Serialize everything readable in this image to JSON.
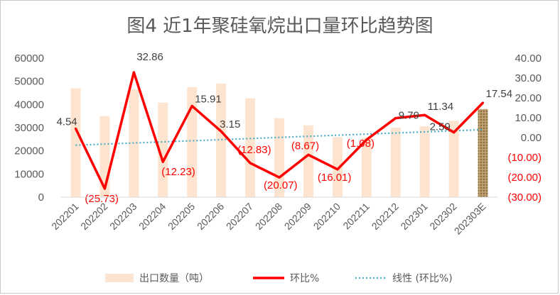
{
  "chart_data": {
    "type": "bar",
    "title": "图4  近1年聚硅氧烷出口量环比趋势图",
    "categories": [
      "202201",
      "202202",
      "202203",
      "202204",
      "202205",
      "202206",
      "202207",
      "202208",
      "202209",
      "202210",
      "202211",
      "202212",
      "202301",
      "202302",
      "202303E"
    ],
    "series": [
      {
        "name": "出口数量（吨）",
        "type": "bar",
        "axis": "left",
        "values": [
          47000,
          35000,
          46500,
          40800,
          47500,
          49000,
          42700,
          34100,
          31000,
          25900,
          25600,
          30000,
          30600,
          33000,
          38000
        ],
        "color": "#fde4d0",
        "estimate_color": "#a89060"
      },
      {
        "name": "环比%",
        "type": "line",
        "axis": "right",
        "values": [
          4.54,
          -25.73,
          32.86,
          -12.23,
          15.91,
          3.15,
          -12.83,
          -20.07,
          -8.67,
          -16.01,
          -1.08,
          9.79,
          11.34,
          2.59,
          17.54
        ],
        "color": "#ff0000"
      },
      {
        "name": "线性 (环比%)",
        "type": "trendline",
        "axis": "right",
        "color": "#4bacc6"
      }
    ],
    "data_labels": [
      "4.54",
      "(25.73)",
      "32.86",
      "(12.23)",
      "15.91",
      "3.15",
      "(12.83)",
      "(20.07)",
      "(8.67)",
      "(16.01)",
      "(1.08)",
      "9.79",
      "11.34",
      "2.59",
      "17.54"
    ],
    "y_left": {
      "ticks": [
        "60000",
        "50000",
        "40000",
        "30000",
        "20000",
        "10000",
        "0"
      ],
      "ylim": [
        0,
        60000
      ]
    },
    "y_right": {
      "ticks": [
        "40.00",
        "30.00",
        "20.00",
        "10.00",
        "0.00",
        "(10.00)",
        "(20.00)",
        "(30.00)"
      ],
      "ylim": [
        -30,
        40
      ]
    },
    "legend_position": "bottom",
    "grid": false
  }
}
